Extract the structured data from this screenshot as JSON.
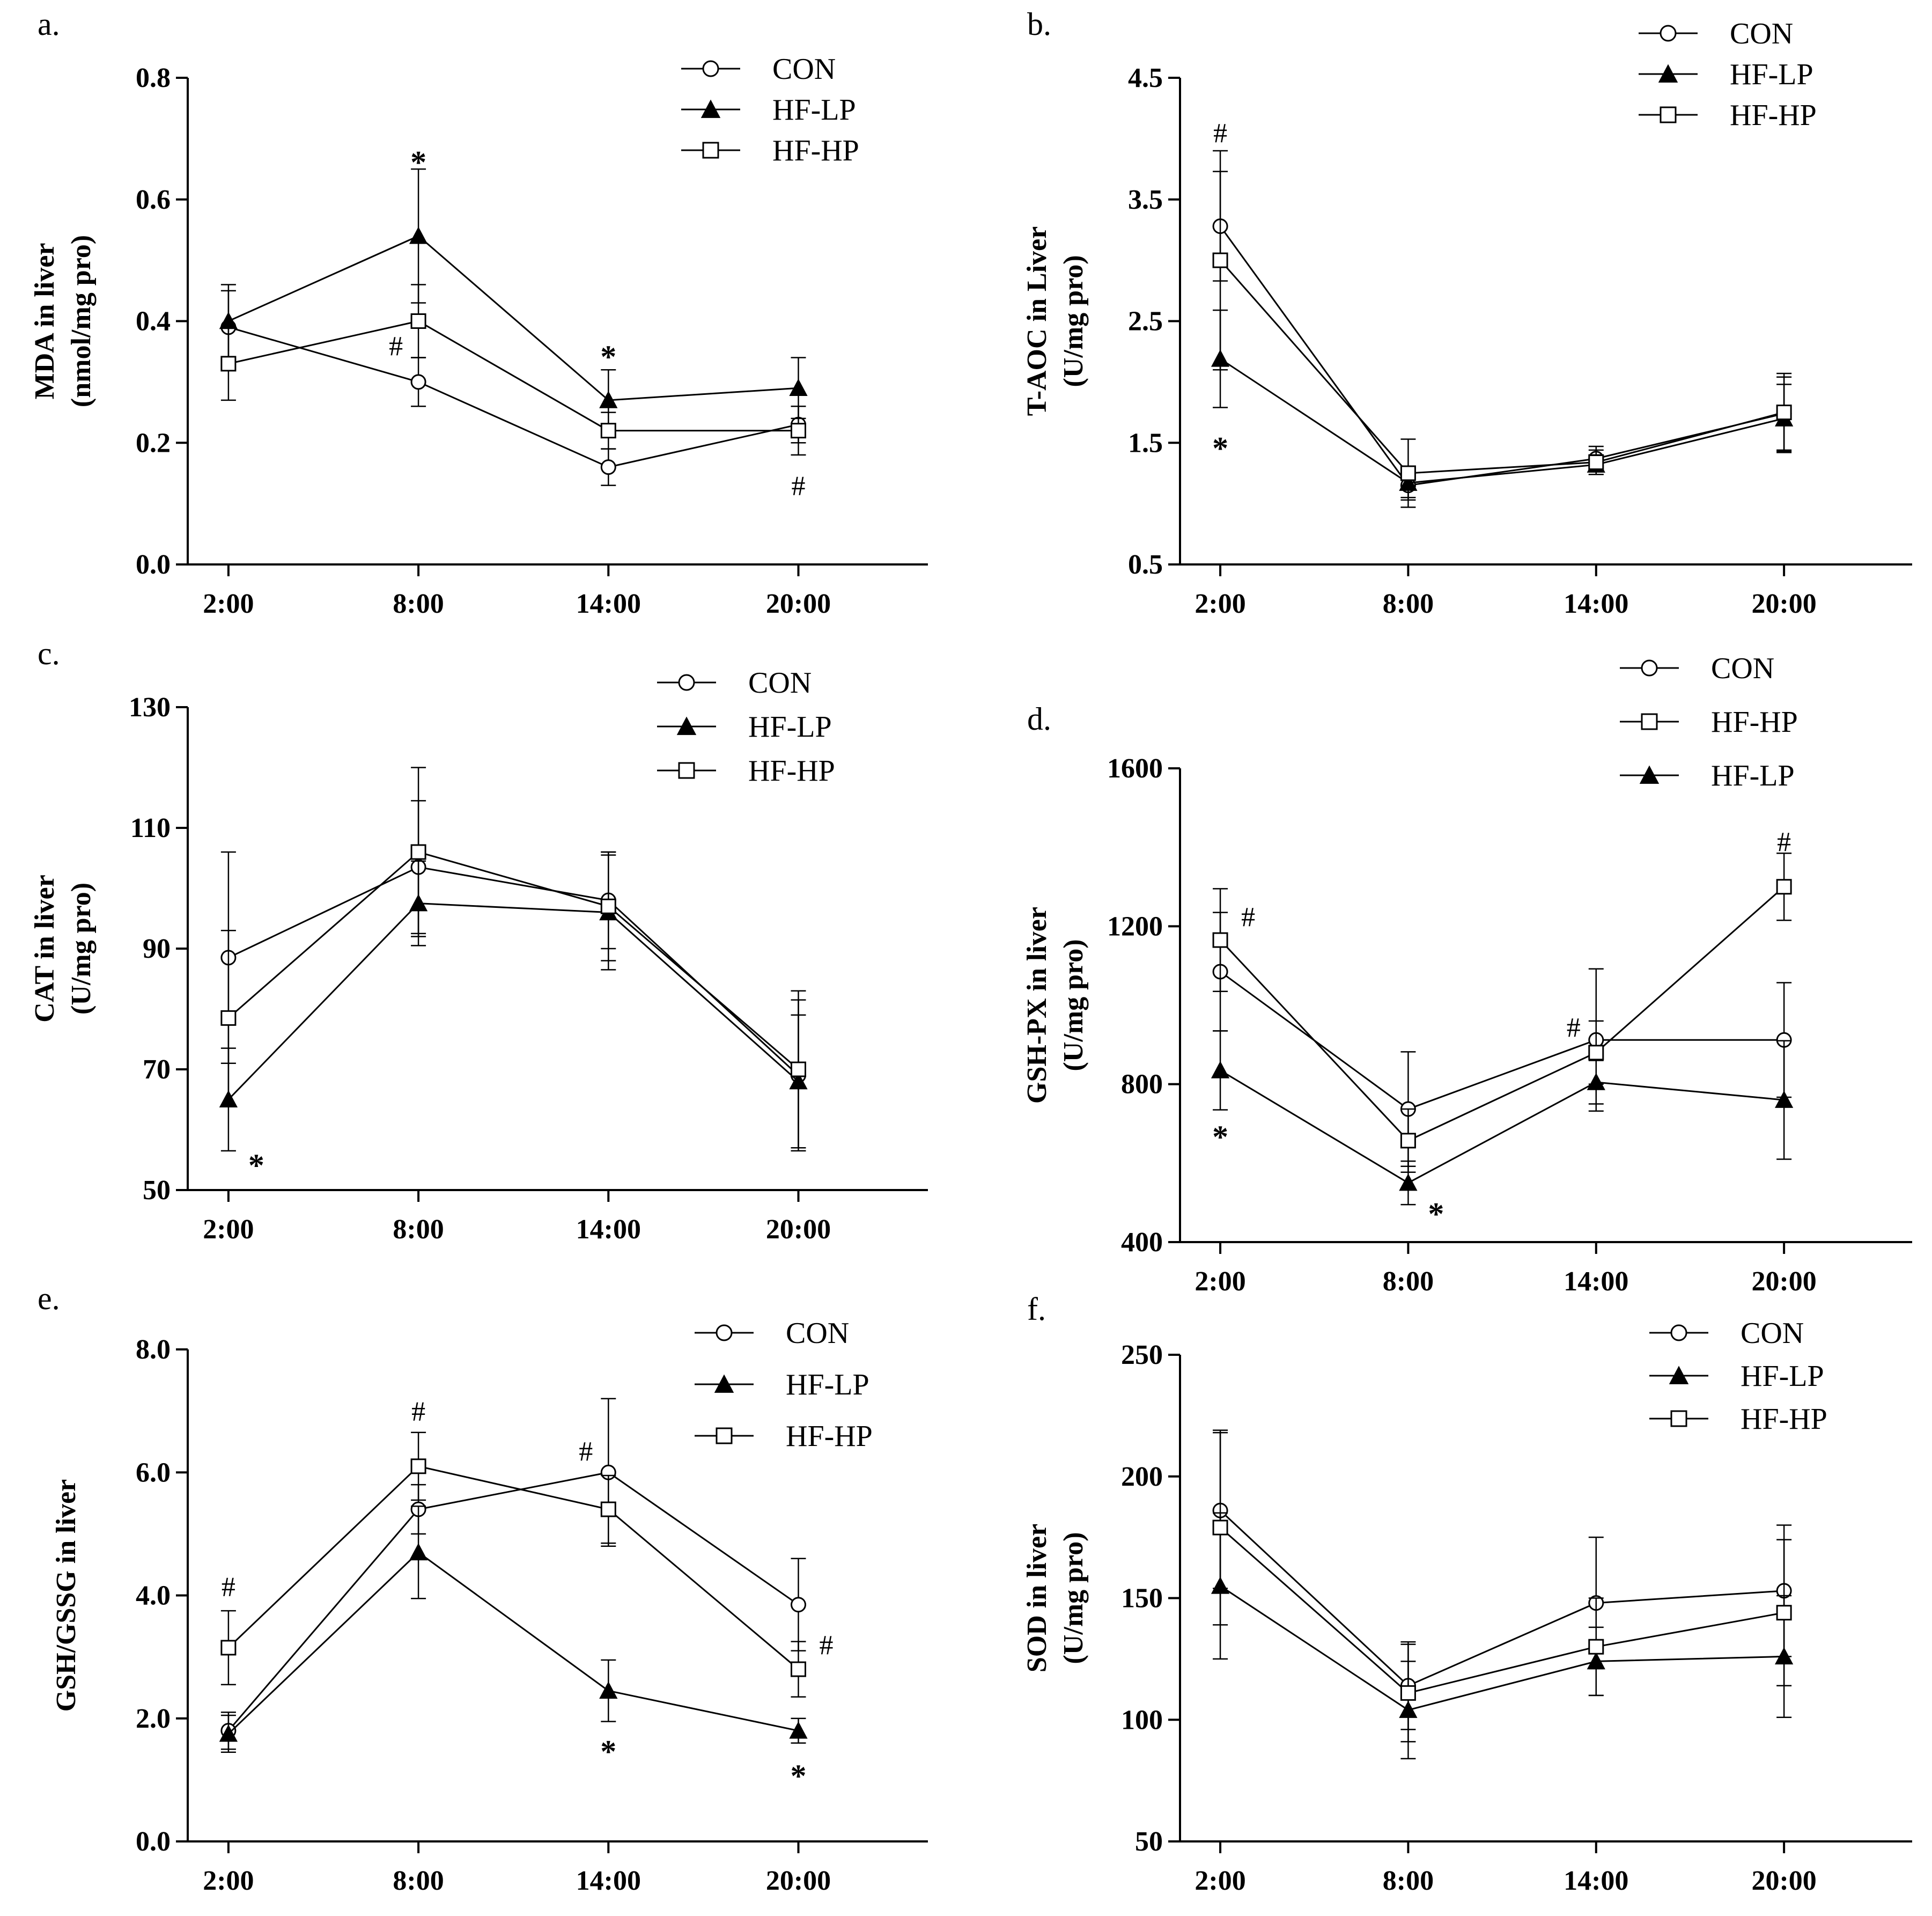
{
  "chart_data": [
    {
      "panel": "a.",
      "type": "line",
      "x": [
        "2:00",
        "8:00",
        "14:00",
        "20:00"
      ],
      "ylabel": [
        "MDA in liver",
        "(nmol/mg pro)"
      ],
      "ylim": [
        0.0,
        0.8
      ],
      "yticks": [
        "0.0",
        "0.2",
        "0.4",
        "0.6",
        "0.8"
      ],
      "legend": [
        "CON",
        "HF-LP",
        "HF-HP"
      ],
      "series": [
        {
          "name": "CON",
          "marker": "circle",
          "values": [
            0.39,
            0.3,
            0.16,
            0.23
          ],
          "errors": [
            0.06,
            0.04,
            0.03,
            0.03
          ]
        },
        {
          "name": "HF-LP",
          "marker": "triangle",
          "values": [
            0.4,
            0.54,
            0.27,
            0.29
          ],
          "errors": [
            0.06,
            0.11,
            0.05,
            0.05
          ]
        },
        {
          "name": "HF-HP",
          "marker": "square",
          "values": [
            0.33,
            0.4,
            0.22,
            0.22
          ],
          "errors": [
            0.06,
            0.06,
            0.03,
            0.04
          ]
        }
      ],
      "annotations": [
        {
          "text": "*",
          "x": "8:00",
          "y": 0.67
        },
        {
          "text": "#",
          "x": "8:00",
          "y": 0.36,
          "side": "left"
        },
        {
          "text": "*",
          "x": "14:00",
          "y": 0.35
        },
        {
          "text": "#",
          "x": "20:00",
          "y": 0.13
        }
      ]
    },
    {
      "panel": "b.",
      "type": "line",
      "x": [
        "2:00",
        "8:00",
        "14:00",
        "20:00"
      ],
      "ylabel": [
        "T-AOC in Liver",
        "(U/mg pro)"
      ],
      "ylim": [
        0.5,
        4.5
      ],
      "yticks": [
        "0.5",
        "1.5",
        "2.5",
        "3.5",
        "4.5"
      ],
      "legend": [
        "CON",
        "HF-LP",
        "HF-HP"
      ],
      "series": [
        {
          "name": "CON",
          "marker": "circle",
          "values": [
            3.28,
            1.15,
            1.37,
            1.74
          ],
          "errors": [
            0.45,
            0.12,
            0.1,
            0.3
          ]
        },
        {
          "name": "HF-LP",
          "marker": "triangle",
          "values": [
            2.19,
            1.17,
            1.32,
            1.7
          ],
          "errors": [
            0.4,
            0.12,
            0.08,
            0.28
          ]
        },
        {
          "name": "HF-HP",
          "marker": "square",
          "values": [
            3.0,
            1.25,
            1.34,
            1.75
          ],
          "errors": [
            0.9,
            0.28,
            0.1,
            0.32
          ]
        }
      ],
      "annotations": [
        {
          "text": "#",
          "x": "2:00",
          "y": 4.05
        },
        {
          "text": "*",
          "x": "2:00",
          "y": 1.5
        }
      ]
    },
    {
      "panel": "c.",
      "type": "line",
      "x": [
        "2:00",
        "8:00",
        "14:00",
        "20:00"
      ],
      "ylabel": [
        "CAT in liver",
        "(U/mg pro)"
      ],
      "ylim": [
        50,
        130
      ],
      "yticks": [
        "50",
        "70",
        "90",
        "110",
        "130"
      ],
      "legend": [
        "CON",
        "HF-LP",
        "HF-HP"
      ],
      "series": [
        {
          "name": "CON",
          "marker": "circle",
          "values": [
            88.5,
            103.5,
            98.0,
            69.0
          ],
          "errors": [
            17.5,
            11.0,
            8.0,
            12.5
          ]
        },
        {
          "name": "HF-LP",
          "marker": "triangle",
          "values": [
            65.0,
            97.5,
            96.0,
            68.0
          ],
          "errors": [
            8.5,
            7.0,
            9.5,
            11.0
          ]
        },
        {
          "name": "HF-HP",
          "marker": "square",
          "values": [
            78.5,
            106.0,
            97.0,
            70.0
          ],
          "errors": [
            14.5,
            14.0,
            9.0,
            13.0
          ]
        }
      ],
      "annotations": [
        {
          "text": "*",
          "x": "2:00",
          "y": 55,
          "side": "right"
        }
      ]
    },
    {
      "panel": "d.",
      "type": "line",
      "x": [
        "2:00",
        "8:00",
        "14:00",
        "20:00"
      ],
      "ylabel": [
        "GSH-PX in liver",
        "(U/mg pro)"
      ],
      "ylim": [
        400,
        1600
      ],
      "yticks": [
        "400",
        "800",
        "1200",
        "1600"
      ],
      "legend": [
        "CON",
        "HF-HP",
        "HF-LP"
      ],
      "series": [
        {
          "name": "CON",
          "marker": "circle",
          "values": [
            1085,
            737,
            912,
            912
          ],
          "errors": [
            150,
            145,
            180,
            145
          ]
        },
        {
          "name": "HF-HP",
          "marker": "square",
          "values": [
            1165,
            657,
            880,
            1300
          ],
          "errors": [
            130,
            80,
            80,
            85
          ]
        },
        {
          "name": "HF-LP",
          "marker": "triangle",
          "values": [
            835,
            550,
            805,
            760
          ],
          "errors": [
            100,
            55,
            55,
            150
          ]
        }
      ],
      "annotations": [
        {
          "text": "#",
          "x": "2:00",
          "y": 1225,
          "side": "right"
        },
        {
          "text": "*",
          "x": "2:00",
          "y": 680
        },
        {
          "text": "*",
          "x": "8:00",
          "y": 485,
          "side": "right"
        },
        {
          "text": "#",
          "x": "14:00",
          "y": 945,
          "side": "left"
        },
        {
          "text": "#",
          "x": "20:00",
          "y": 1415
        }
      ]
    },
    {
      "panel": "e.",
      "type": "line",
      "x": [
        "2:00",
        "8:00",
        "14:00",
        "20:00"
      ],
      "ylabel": [
        "GSH/GSSG in liver"
      ],
      "ylim": [
        0.0,
        8.0
      ],
      "yticks": [
        "0.0",
        "2.0",
        "4.0",
        "6.0",
        "8.0"
      ],
      "legend": [
        "CON",
        "HF-LP",
        "HF-HP"
      ],
      "series": [
        {
          "name": "CON",
          "marker": "circle",
          "values": [
            1.8,
            5.4,
            6.0,
            3.85
          ],
          "errors": [
            0.3,
            0.4,
            1.2,
            0.75
          ]
        },
        {
          "name": "HF-LP",
          "marker": "triangle",
          "values": [
            1.75,
            4.7,
            2.45,
            1.8
          ],
          "errors": [
            0.3,
            0.75,
            0.5,
            0.2
          ]
        },
        {
          "name": "HF-HP",
          "marker": "square",
          "values": [
            3.15,
            6.1,
            5.4,
            2.8
          ],
          "errors": [
            0.6,
            0.55,
            0.55,
            0.45
          ]
        }
      ],
      "annotations": [
        {
          "text": "#",
          "x": "2:00",
          "y": 4.15
        },
        {
          "text": "#",
          "x": "8:00",
          "y": 7.0
        },
        {
          "text": "#",
          "x": "14:00",
          "y": 6.35,
          "side": "left"
        },
        {
          "text": "*",
          "x": "14:00",
          "y": 1.55
        },
        {
          "text": "#",
          "x": "20:00",
          "y": 3.2,
          "side": "right"
        },
        {
          "text": "*",
          "x": "20:00",
          "y": 1.15
        }
      ]
    },
    {
      "panel": "f.",
      "type": "line",
      "x": [
        "2:00",
        "8:00",
        "14:00",
        "20:00"
      ],
      "ylabel": [
        "SOD in liver",
        "(U/mg pro)"
      ],
      "ylim": [
        50,
        250
      ],
      "yticks": [
        "50",
        "100",
        "150",
        "200",
        "250"
      ],
      "legend": [
        "CON",
        "HF-LP",
        "HF-HP"
      ],
      "series": [
        {
          "name": "CON",
          "marker": "circle",
          "values": [
            186,
            114,
            148,
            153
          ],
          "errors": [
            32,
            18,
            27,
            27
          ]
        },
        {
          "name": "HF-LP",
          "marker": "triangle",
          "values": [
            155,
            104,
            124,
            126
          ],
          "errors": [
            30,
            20,
            14,
            25
          ]
        },
        {
          "name": "HF-HP",
          "marker": "square",
          "values": [
            179,
            111,
            130,
            144
          ],
          "errors": [
            40,
            20,
            20,
            30
          ]
        }
      ],
      "annotations": []
    }
  ]
}
